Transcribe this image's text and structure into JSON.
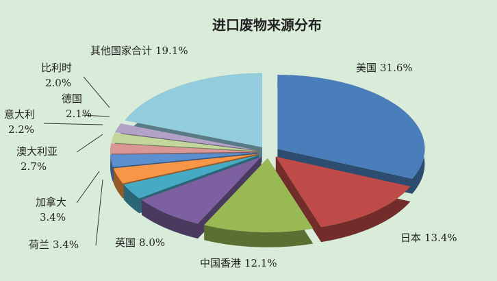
{
  "chart_data": {
    "type": "pie3d",
    "title": "进口废物来源分布",
    "categories": [
      "美国",
      "日本",
      "中国香港",
      "英国",
      "荷兰",
      "加拿大",
      "澳大利亚",
      "意大利",
      "德国",
      "比利时",
      "其他国家合计"
    ],
    "values": [
      31.6,
      13.4,
      12.1,
      8.0,
      3.4,
      3.4,
      2.7,
      2.2,
      2.1,
      2.0,
      19.1
    ],
    "value_labels": [
      "31.6%",
      "13.4%",
      "12.1%",
      "8.0%",
      "3.4%",
      "3.4%",
      "2.7%",
      "2.2%",
      "2.1%",
      "2.0%",
      "19.1%"
    ],
    "colors": [
      "#4a7ebb",
      "#be4b48",
      "#98b954",
      "#7d60a0",
      "#46aac5",
      "#f79646",
      "#5b8fd0",
      "#d99694",
      "#c3d69b",
      "#b3a2c7",
      "#93cddd"
    ]
  }
}
